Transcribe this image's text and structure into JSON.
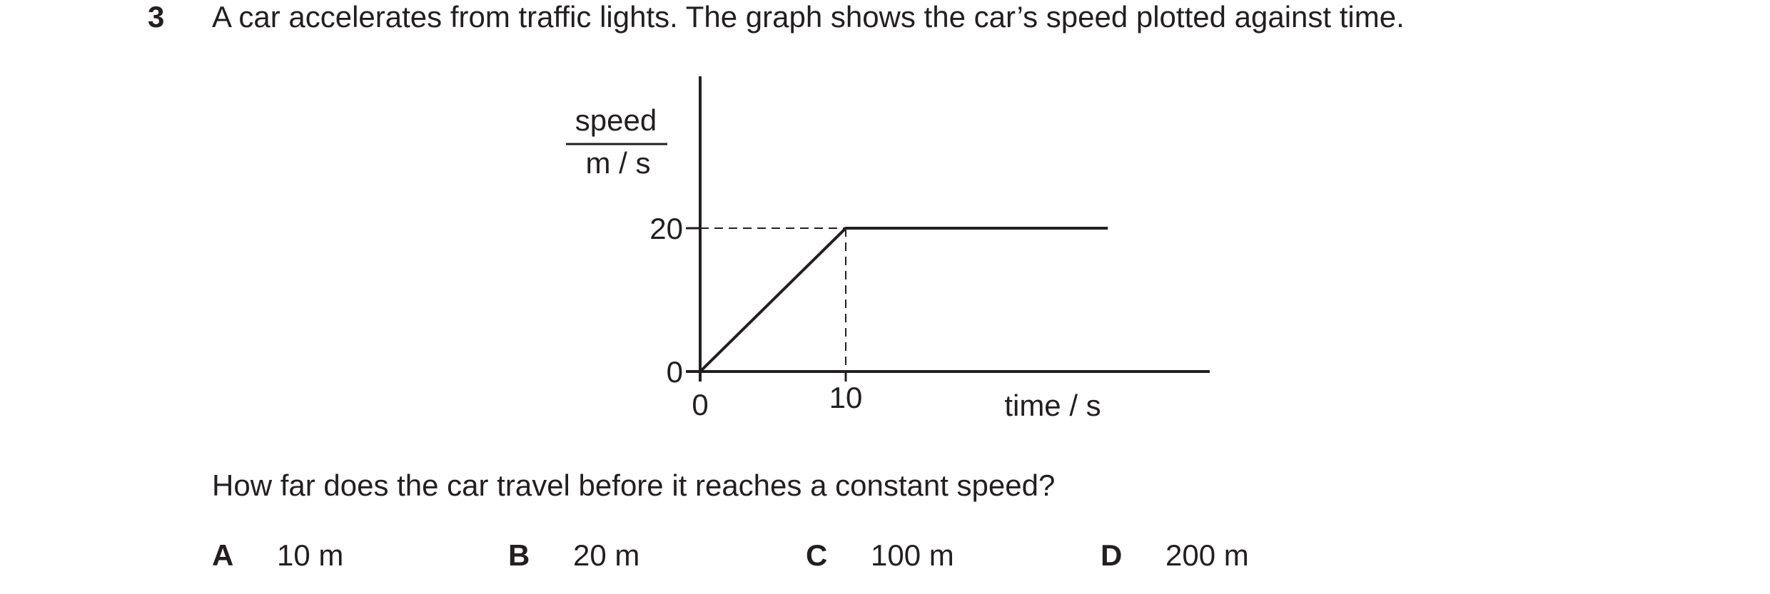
{
  "question": {
    "number": "3",
    "intro": "A car accelerates from traffic lights. The graph shows the car’s speed plotted against time.",
    "prompt": "How far does the car travel before it reaches a constant speed?",
    "options": [
      {
        "letter": "A",
        "text": "10 m"
      },
      {
        "letter": "B",
        "text": "20 m"
      },
      {
        "letter": "C",
        "text": "100 m"
      },
      {
        "letter": "D",
        "text": "200 m"
      }
    ]
  },
  "chart_data": {
    "type": "line",
    "y_label_top": "speed",
    "y_label_bottom": "m / s",
    "x_label": "time / s",
    "x": [
      0,
      10,
      28
    ],
    "values": [
      0,
      20,
      20
    ],
    "color": "#231f20",
    "xlim": [
      0,
      35
    ],
    "ylim": [
      0,
      41
    ],
    "xticks": [
      0,
      10
    ],
    "yticks": [
      0,
      20
    ]
  }
}
